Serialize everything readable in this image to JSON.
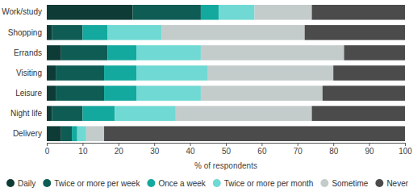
{
  "chart_data": {
    "type": "bar",
    "orientation": "horizontal",
    "stacked": true,
    "grid": false,
    "legend": "bottom",
    "x_label": "% of respondents",
    "categories": [
      "Work/study",
      "Shopping",
      "Errands",
      "Visiting",
      "Leisure",
      "Night life",
      "Delivery"
    ],
    "xlim": [
      0,
      100
    ],
    "xticks": [
      0,
      10,
      20,
      30,
      40,
      50,
      60,
      70,
      80,
      90,
      100
    ],
    "series": [
      {
        "name": "Daily",
        "color": "#0f3b36",
        "values": [
          24,
          1.5,
          4,
          2.5,
          2.5,
          1.5,
          4
        ]
      },
      {
        "name": "Twice or more per week",
        "color": "#0f5c55",
        "values": [
          19,
          8.5,
          13,
          13.5,
          13.5,
          8.5,
          3
        ]
      },
      {
        "name": "Once a week",
        "color": "#14a99e",
        "values": [
          5,
          7,
          8,
          9,
          9,
          9,
          1.5
        ]
      },
      {
        "name": "Twice or more per month",
        "color": "#70d9d3",
        "values": [
          10,
          15,
          18,
          20,
          18,
          17,
          2.5
        ]
      },
      {
        "name": "Sometime",
        "color": "#c3cccb",
        "values": [
          16,
          40,
          40,
          35,
          34,
          38,
          5
        ]
      },
      {
        "name": "Never",
        "color": "#4b4b4b",
        "values": [
          26,
          28,
          17,
          20,
          23,
          26,
          84
        ]
      }
    ]
  }
}
